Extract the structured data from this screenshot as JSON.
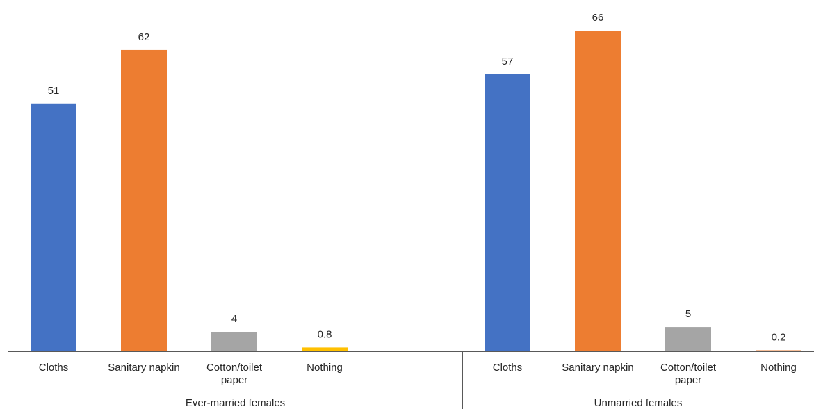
{
  "chart_data": {
    "type": "bar",
    "title": "",
    "xlabel": "",
    "ylabel": "",
    "ylim": [
      0,
      70
    ],
    "grid": false,
    "legend": "none",
    "groups": [
      {
        "name": "Ever-married females",
        "categories": [
          "Cloths",
          "Sanitary napkin",
          "Cotton/toilet paper",
          "Nothing"
        ],
        "category_lines": [
          [
            "Cloths"
          ],
          [
            "Sanitary napkin"
          ],
          [
            "Cotton/toilet",
            "paper"
          ],
          [
            "Nothing"
          ]
        ],
        "values": [
          51,
          62,
          4,
          0.8
        ],
        "value_labels": [
          "51",
          "62",
          "4",
          "0.8"
        ],
        "colors": [
          "#4472C4",
          "#ED7D31",
          "#A5A5A5",
          "#FFC000"
        ]
      },
      {
        "name": "Unmarried females",
        "categories": [
          "Cloths",
          "Sanitary napkin",
          "Cotton/toilet paper",
          "Nothing"
        ],
        "category_lines": [
          [
            "Cloths"
          ],
          [
            "Sanitary napkin"
          ],
          [
            "Cotton/toilet",
            "paper"
          ],
          [
            "Nothing"
          ]
        ],
        "values": [
          57,
          66,
          5,
          0.2
        ],
        "value_labels": [
          "57",
          "66",
          "5",
          "0.2"
        ],
        "colors": [
          "#4472C4",
          "#ED7D31",
          "#A5A5A5",
          "#ED7D31"
        ]
      }
    ]
  }
}
